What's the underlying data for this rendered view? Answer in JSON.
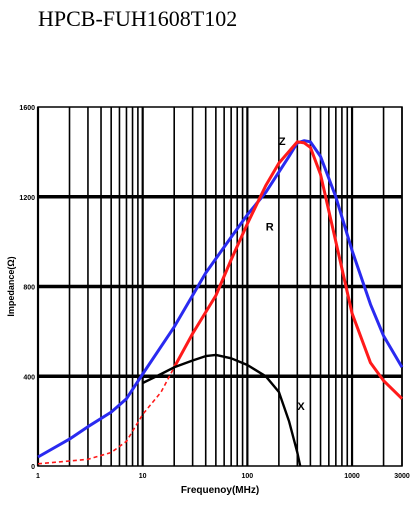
{
  "title": "HPCB-FUH1608T102",
  "chart_data": {
    "type": "line",
    "xlabel": "Frequenoy(MHz)",
    "ylabel": "Impedance(Ω)",
    "xscale": "log",
    "xlim": [
      1,
      3000
    ],
    "ylim": [
      0,
      1600
    ],
    "grid": true,
    "x_ticks": [
      {
        "value": 1,
        "label": "1"
      },
      {
        "value": 10,
        "label": "10"
      },
      {
        "value": 100,
        "label": "100"
      },
      {
        "value": 1000,
        "label": "1000"
      },
      {
        "value": 3000,
        "label": "3000"
      }
    ],
    "y_ticks": [
      {
        "value": 0,
        "label": "0"
      },
      {
        "value": 400,
        "label": "400"
      },
      {
        "value": 800,
        "label": "800"
      },
      {
        "value": 1200,
        "label": "1200"
      },
      {
        "value": 1600,
        "label": "1600"
      }
    ],
    "series": [
      {
        "name": "Z",
        "color": "#2a2af0",
        "dash": "solid",
        "points": [
          [
            1,
            40
          ],
          [
            2,
            120
          ],
          [
            3,
            175
          ],
          [
            5,
            240
          ],
          [
            7,
            300
          ],
          [
            10,
            410
          ],
          [
            20,
            620
          ],
          [
            40,
            860
          ],
          [
            70,
            1020
          ],
          [
            100,
            1120
          ],
          [
            150,
            1220
          ],
          [
            200,
            1310
          ],
          [
            250,
            1380
          ],
          [
            300,
            1440
          ],
          [
            350,
            1450
          ],
          [
            400,
            1445
          ],
          [
            500,
            1380
          ],
          [
            700,
            1200
          ],
          [
            1000,
            960
          ],
          [
            1500,
            720
          ],
          [
            2000,
            580
          ],
          [
            3000,
            440
          ]
        ]
      },
      {
        "name": "R",
        "color": "#ff1a1a",
        "dash_below_x": 20,
        "points": [
          [
            1,
            10
          ],
          [
            3,
            30
          ],
          [
            5,
            60
          ],
          [
            7,
            110
          ],
          [
            10,
            230
          ],
          [
            15,
            330
          ],
          [
            20,
            440
          ],
          [
            30,
            590
          ],
          [
            50,
            760
          ],
          [
            70,
            920
          ],
          [
            100,
            1080
          ],
          [
            150,
            1250
          ],
          [
            200,
            1350
          ],
          [
            300,
            1445
          ],
          [
            350,
            1440
          ],
          [
            400,
            1420
          ],
          [
            500,
            1300
          ],
          [
            700,
            1000
          ],
          [
            1000,
            680
          ],
          [
            1500,
            460
          ],
          [
            2000,
            380
          ],
          [
            3000,
            300
          ]
        ]
      },
      {
        "name": "X",
        "color": "#000000",
        "dash": "solid",
        "points": [
          [
            10,
            370
          ],
          [
            15,
            410
          ],
          [
            20,
            440
          ],
          [
            30,
            470
          ],
          [
            40,
            490
          ],
          [
            50,
            495
          ],
          [
            70,
            480
          ],
          [
            100,
            450
          ],
          [
            150,
            400
          ],
          [
            200,
            330
          ],
          [
            250,
            200
          ],
          [
            300,
            60
          ],
          [
            320,
            0
          ]
        ]
      }
    ],
    "label_anchor": {
      "Z": {
        "x": 200,
        "y": 1430
      },
      "R": {
        "x": 150,
        "y": 1050
      },
      "X": {
        "x": 300,
        "y": 250
      }
    }
  }
}
